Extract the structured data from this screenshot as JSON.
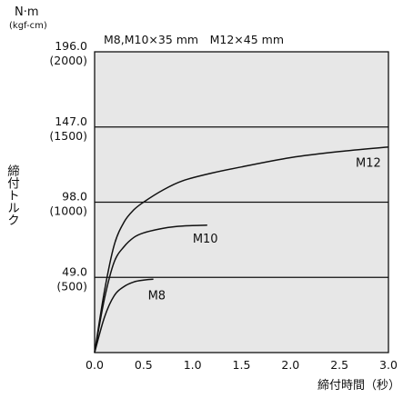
{
  "chart_data": {
    "type": "line",
    "unit_label": "N·m",
    "unit_sub": "(kgf-cm)",
    "note": "M8,M10×35 mm　M12×45 mm",
    "xlabel": "締付時間（秒）",
    "ylabel": "締付トルク",
    "xlim": [
      0,
      3.0
    ],
    "ylim": [
      0,
      196
    ],
    "x_ticks": [
      "0.0",
      "0.5",
      "1.0",
      "1.5",
      "2.0",
      "2.5",
      "3.0"
    ],
    "y_ticks": [
      {
        "value": 49,
        "label": "49.0",
        "sub": "(500)"
      },
      {
        "value": 98,
        "label": "98.0",
        "sub": "(1000)"
      },
      {
        "value": 147,
        "label": "147.0",
        "sub": "(1500)"
      },
      {
        "value": 196,
        "label": "196.0",
        "sub": "(2000)"
      }
    ],
    "grid": "horizontal",
    "series": [
      {
        "name": "M12",
        "x": [
          0,
          0.1,
          0.2,
          0.3,
          0.4,
          0.5,
          0.7,
          0.9,
          1.2,
          1.5,
          2.0,
          2.5,
          3.0
        ],
        "y": [
          0,
          40,
          70,
          85,
          93,
          98,
          106,
          112,
          117,
          121,
          127,
          131,
          134
        ]
      },
      {
        "name": "M10",
        "x": [
          0,
          0.1,
          0.2,
          0.3,
          0.4,
          0.5,
          0.7,
          0.9,
          1.15
        ],
        "y": [
          0,
          35,
          59,
          69,
          75,
          78,
          81,
          82.5,
          83
        ]
      },
      {
        "name": "M8",
        "x": [
          0,
          0.1,
          0.2,
          0.3,
          0.4,
          0.5,
          0.6
        ],
        "y": [
          0,
          23,
          37,
          43,
          46,
          47.2,
          47.8
        ]
      }
    ]
  }
}
